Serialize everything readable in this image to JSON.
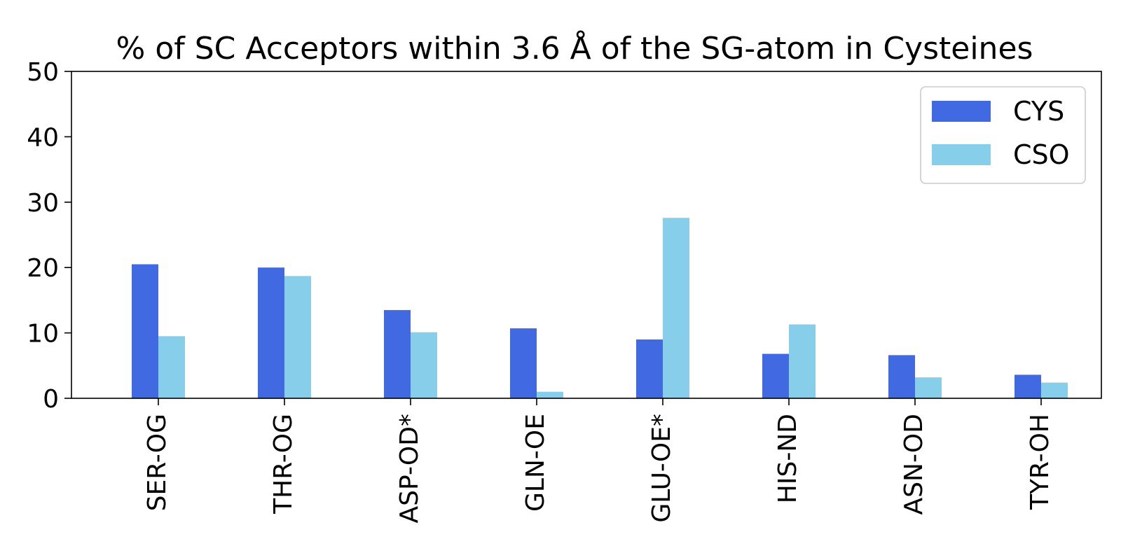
{
  "chart_data": {
    "type": "bar",
    "title": "% of SC Acceptors within 3.6 Å of the SG-atom in Cysteines",
    "xlabel": "",
    "ylabel": "",
    "ylim": [
      0,
      50
    ],
    "yticks": [
      "0",
      "10",
      "20",
      "30",
      "40",
      "50"
    ],
    "categories": [
      "SER-OG",
      "THR-OG",
      "ASP-OD*",
      "GLN-OE",
      "GLU-OE*",
      "HIS-ND",
      "ASN-OD",
      "TYR-OH"
    ],
    "series": [
      {
        "name": "CYS",
        "color": "#4169e1",
        "values": [
          20.5,
          20.0,
          13.5,
          10.7,
          9.0,
          6.8,
          6.6,
          3.6
        ]
      },
      {
        "name": "CSO",
        "color": "#87ceeb",
        "values": [
          9.5,
          18.7,
          10.1,
          1.0,
          27.6,
          11.3,
          3.2,
          2.4
        ]
      }
    ],
    "grid": false,
    "legend": "top-right"
  }
}
